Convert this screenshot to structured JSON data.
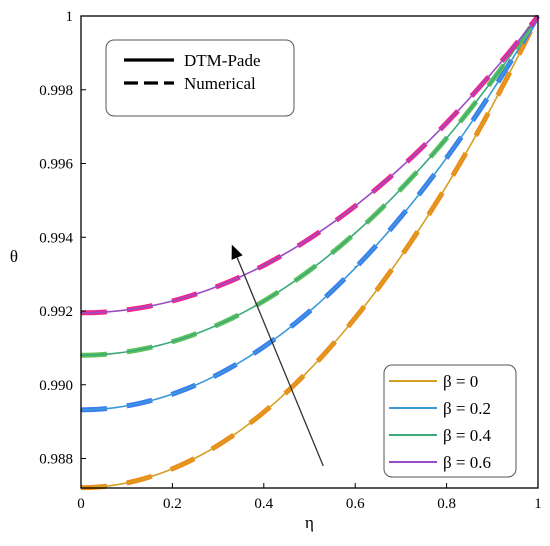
{
  "chart_data": {
    "type": "line",
    "title": "",
    "xlabel": "η",
    "ylabel": "θ",
    "xlim": [
      0,
      1
    ],
    "ylim": [
      0.9872,
      1.0
    ],
    "x_ticks": [
      "0",
      "0.2",
      "0.4",
      "0.6",
      "0.8",
      "1"
    ],
    "x_tick_values": [
      0,
      0.2,
      0.4,
      0.6,
      0.8,
      1
    ],
    "y_ticks": [
      "0.988",
      "0.990",
      "0.992",
      "0.994",
      "0.996",
      "0.998",
      "1"
    ],
    "y_tick_values": [
      0.988,
      0.99,
      0.992,
      0.994,
      0.996,
      0.998,
      1.0
    ],
    "grid": false,
    "style_legend": {
      "placement": "top-left",
      "entries": [
        {
          "label": "DTM-Pade",
          "style": "solid"
        },
        {
          "label": "Numerical",
          "style": "dashed"
        }
      ]
    },
    "series_legend_placement": "bottom-right",
    "series": [
      {
        "name": "β = 0",
        "color": "#D4A020",
        "dash_color": "#F08A1A",
        "theta0": 0.98721,
        "x": [
          0,
          0.2,
          0.4,
          0.6,
          0.8,
          1.0
        ],
        "y": [
          0.98721,
          0.98772,
          0.98925,
          0.99181,
          0.99539,
          1.0
        ]
      },
      {
        "name": "β = 0.2",
        "color": "#3A9AD9",
        "dash_color": "#3C7CF0",
        "theta0": 0.98932,
        "x": [
          0,
          0.2,
          0.4,
          0.6,
          0.8,
          1.0
        ],
        "y": [
          0.98932,
          0.98975,
          0.99104,
          0.9932,
          0.99617,
          1.0
        ]
      },
      {
        "name": "β = 0.4",
        "color": "#3BAA78",
        "dash_color": "#5EC25E",
        "theta0": 0.9908,
        "x": [
          0,
          0.2,
          0.4,
          0.6,
          0.8,
          1.0
        ],
        "y": [
          0.9908,
          0.99117,
          0.99227,
          0.99412,
          0.99671,
          1.0
        ]
      },
      {
        "name": "β = 0.6",
        "color": "#9B4BC4",
        "dash_color": "#F0288C",
        "theta0": 0.99195,
        "x": [
          0,
          0.2,
          0.4,
          0.6,
          0.8,
          1.0
        ],
        "y": [
          0.99195,
          0.99227,
          0.99323,
          0.99483,
          0.99709,
          1.0
        ]
      }
    ],
    "annotations": [
      {
        "type": "arrow",
        "direction": "increasing β",
        "from": [
          0.53,
          0.9878
        ],
        "to": [
          0.33,
          0.9938
        ]
      }
    ]
  }
}
